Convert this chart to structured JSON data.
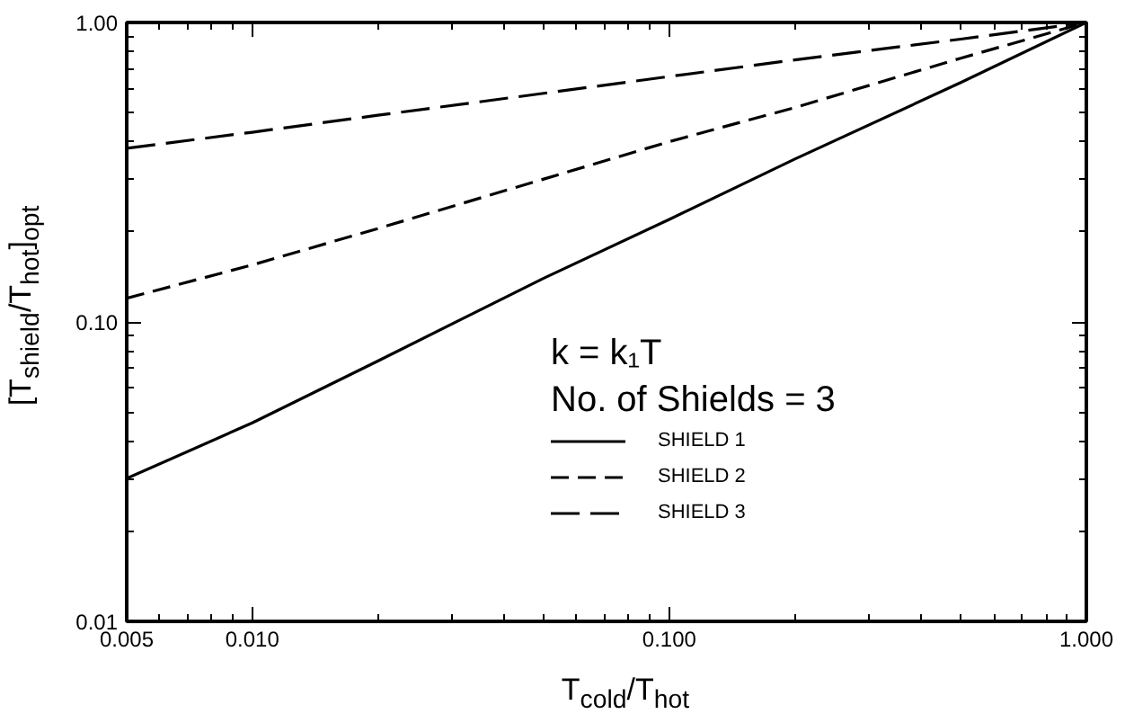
{
  "chart_data": {
    "type": "line",
    "xlabel": "T$_{cold}$/T$_{hot}$",
    "ylabel": "[T$_{shield}$/T$_{hot}$]$_{opt}$",
    "log": "xy",
    "xlim": [
      0.005,
      1.0
    ],
    "ylim": [
      0.01,
      1.0
    ],
    "xticks": [
      {
        "value": 0.005,
        "label": "0.005"
      },
      {
        "value": 0.01,
        "label": "0.010"
      },
      {
        "value": 0.1,
        "label": "0.100"
      },
      {
        "value": 1.0,
        "label": "1.000"
      }
    ],
    "yticks": [
      {
        "value": 0.01,
        "label": "0.01"
      },
      {
        "value": 0.1,
        "label": "0.10"
      },
      {
        "value": 1.0,
        "label": "1.00"
      }
    ],
    "x": [
      0.005,
      0.01,
      0.02,
      0.05,
      0.1,
      0.2,
      0.5,
      1.0
    ],
    "series": [
      {
        "name": "SHIELD 1",
        "color": "#000000",
        "line_style": "solid",
        "values": [
          0.03,
          0.046,
          0.074,
          0.14,
          0.22,
          0.35,
          0.63,
          1.0
        ]
      },
      {
        "name": "SHIELD 2",
        "color": "#000000",
        "line_style": "dashed",
        "values": [
          0.12,
          0.155,
          0.205,
          0.3,
          0.4,
          0.52,
          0.76,
          1.0
        ]
      },
      {
        "name": "SHIELD 3",
        "color": "#000000",
        "line_style": "dashed",
        "values": [
          0.38,
          0.43,
          0.49,
          0.58,
          0.66,
          0.75,
          0.88,
          1.0
        ]
      }
    ],
    "annotations": [
      "k = k₁T",
      "No. of Shields = 3"
    ],
    "legend": "center",
    "grid": false,
    "marker": "none"
  }
}
